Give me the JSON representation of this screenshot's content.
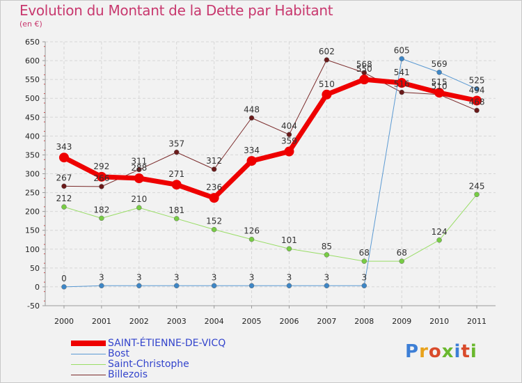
{
  "title": "Evolution du Montant de la Dette par Habitant",
  "subtitle": "(en €)",
  "logo": {
    "text": "Proxiti",
    "colors": [
      "#3d7fd6",
      "#e8a21c",
      "#d94b2b",
      "#6ab82e",
      "#3d7fd6",
      "#d94b2b",
      "#6ab82e"
    ]
  },
  "chart_data": {
    "type": "line",
    "x": [
      "2000",
      "2001",
      "2002",
      "2003",
      "2004",
      "2005",
      "2006",
      "2007",
      "2008",
      "2009",
      "2010",
      "2011"
    ],
    "ylim": [
      -50,
      650
    ],
    "yticks": [
      "-50",
      "0",
      "50",
      "100",
      "150",
      "200",
      "250",
      "300",
      "350",
      "400",
      "450",
      "500",
      "550",
      "600",
      "650"
    ],
    "grid": true,
    "legend_position": "bottom-left",
    "series": [
      {
        "name": "SAINT-ÉTIENNE-DE-VICQ",
        "color": "#ee0000",
        "point_color": "#ee0000",
        "width": 7,
        "radius": 7,
        "values": [
          343,
          292,
          288,
          271,
          236,
          334,
          359,
          510,
          550,
          541,
          515,
          494
        ],
        "labels": [
          "343",
          "292",
          "288",
          "271",
          "236",
          "334",
          "359",
          "510",
          "550",
          "541",
          "515",
          "494"
        ]
      },
      {
        "name": "Bost",
        "color": "#5b9ad3",
        "point_color": "#3d86c6",
        "width": 1,
        "radius": 3.5,
        "values": [
          0,
          3,
          3,
          3,
          3,
          3,
          3,
          3,
          3,
          605,
          569,
          525
        ],
        "labels": [
          "0",
          "3",
          "3",
          "3",
          "3",
          "3",
          "3",
          "3",
          "3",
          "605",
          "569",
          "525"
        ]
      },
      {
        "name": "Saint-Christophe",
        "color": "#99dd66",
        "point_color": "#77cc44",
        "width": 1,
        "radius": 3.5,
        "values": [
          212,
          182,
          210,
          181,
          152,
          126,
          101,
          85,
          68,
          68,
          124,
          245
        ],
        "labels": [
          "212",
          "182",
          "210",
          "181",
          "152",
          "126",
          "101",
          "85",
          "68",
          "68",
          "124",
          "245"
        ]
      },
      {
        "name": "Billezois",
        "color": "#7a2a2a",
        "point_color": "#6a1a1a",
        "width": 1,
        "radius": 3.5,
        "values": [
          267,
          266,
          311,
          357,
          312,
          448,
          404,
          602,
          568,
          516,
          510,
          468
        ],
        "labels": [
          "267",
          "266",
          "311",
          "357",
          "312",
          "448",
          "404",
          "602",
          "568",
          "516",
          "510",
          "468"
        ]
      }
    ]
  }
}
